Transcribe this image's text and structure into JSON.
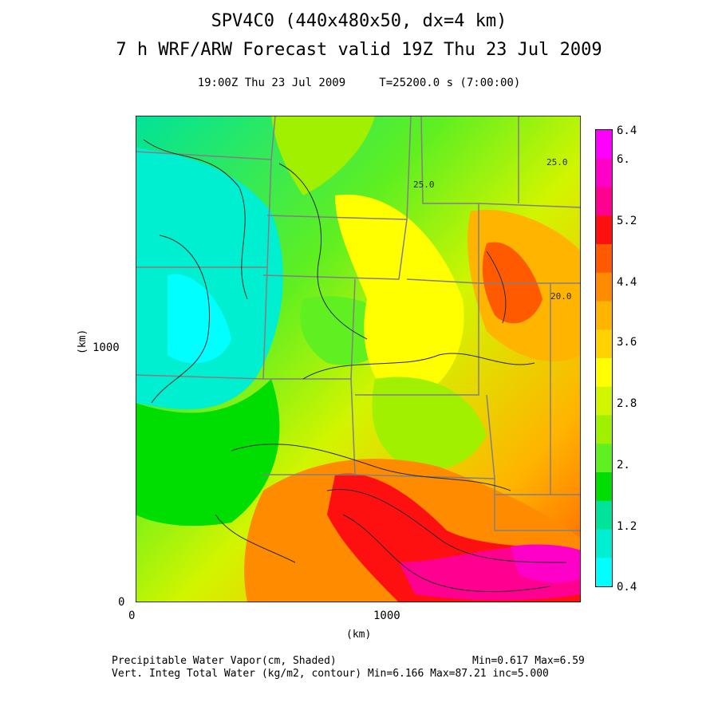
{
  "title": {
    "line1": "SPV4C0 (440x480x50, dx=4 km)",
    "line2": "7 h WRF/ARW Forecast valid 19Z Thu 23 Jul 2009",
    "line3": "19:00Z Thu 23 Jul 2009     T=25200.0 s (7:00:00)"
  },
  "axes": {
    "x_ticks": [
      "0",
      "1000"
    ],
    "y_ticks": [
      "0",
      "1000"
    ],
    "x_label": "(km)",
    "y_label": "(km)"
  },
  "colorbar": {
    "labels": [
      "6.4",
      "6.",
      "5.2",
      "4.4",
      "3.6",
      "2.8",
      "2.",
      "1.2",
      "0.4"
    ],
    "colors": [
      "#ff00ff",
      "#ff00c8",
      "#ff0090",
      "#ff1010",
      "#ff5a00",
      "#ff8c00",
      "#ffb400",
      "#ffd200",
      "#ffff00",
      "#d2f500",
      "#a0f000",
      "#60ef20",
      "#00dd00",
      "#00e39a",
      "#00efd0",
      "#00ffff"
    ]
  },
  "map_features": {
    "contour_labels": [
      "25.0",
      "25.0",
      "20.0"
    ],
    "colors": {
      "state_borders": "#808080",
      "contours": "#2a2a2a"
    }
  },
  "footer": {
    "line1_left": "Precipitable Water Vapor(cm, Shaded)",
    "line1_right": "Min=0.617 Max=6.59",
    "line2": "Vert. Integ Total Water (kg/m2, contour) Min=6.166 Max=87.21 inc=5.000"
  }
}
